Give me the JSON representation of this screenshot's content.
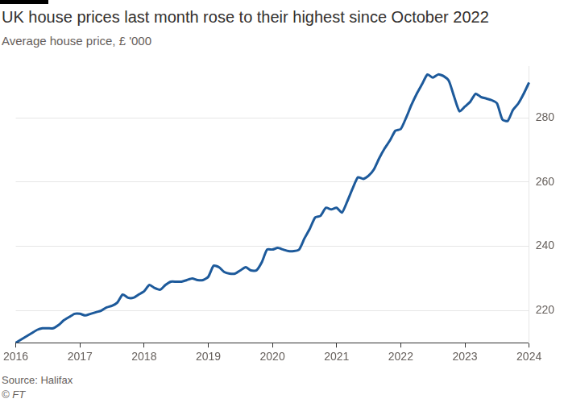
{
  "chart_data": {
    "type": "line",
    "title": "UK house prices last month rose to their highest since October 2022",
    "subtitle": "Average house price, £ '000",
    "source": "Source: Halifax",
    "credit": "© FT",
    "categories": [
      "2016",
      null,
      null,
      null,
      null,
      null,
      null,
      null,
      null,
      null,
      null,
      null,
      "2017",
      null,
      null,
      null,
      null,
      null,
      null,
      null,
      null,
      null,
      null,
      null,
      "2018",
      null,
      null,
      null,
      null,
      null,
      null,
      null,
      null,
      null,
      null,
      null,
      "2019",
      null,
      null,
      null,
      null,
      null,
      null,
      null,
      null,
      null,
      null,
      null,
      "2020",
      null,
      null,
      null,
      null,
      null,
      null,
      null,
      null,
      null,
      null,
      null,
      "2021",
      null,
      null,
      null,
      null,
      null,
      null,
      null,
      null,
      null,
      null,
      null,
      "2022",
      null,
      null,
      null,
      null,
      null,
      null,
      null,
      null,
      null,
      null,
      null,
      "2023",
      null,
      null,
      null,
      null,
      null,
      null,
      null,
      null,
      null,
      null,
      null,
      "2024"
    ],
    "values": [
      210,
      211,
      212,
      213,
      214,
      214.5,
      214.5,
      214.5,
      215.5,
      217,
      218,
      219,
      219,
      218.5,
      219,
      219.5,
      220,
      221,
      221.5,
      222.5,
      225,
      224,
      224,
      225,
      226,
      228,
      227,
      226.5,
      228,
      229,
      229,
      229,
      229.5,
      230,
      229.5,
      229.5,
      230.5,
      234,
      233.5,
      232,
      231.5,
      231.5,
      232.5,
      233.5,
      232.5,
      232.5,
      235,
      239,
      239,
      239.5,
      239,
      238.5,
      238.5,
      239,
      242.5,
      245.5,
      249,
      249.5,
      252,
      251.5,
      252,
      250.5,
      254,
      258,
      261.5,
      261,
      262,
      264,
      267.5,
      270.5,
      273,
      276,
      276.5,
      280,
      284,
      287.5,
      290.5,
      293.5,
      292.5,
      293.5,
      293,
      291.5,
      286.5,
      282,
      283.5,
      285,
      287.5,
      286.5,
      286,
      285.5,
      284.5,
      279.5,
      279,
      282.5,
      284.5,
      287.5,
      291
    ],
    "color": "#1d5a9b",
    "ylim": [
      210,
      296
    ],
    "yticks": [
      220,
      240,
      260,
      280
    ],
    "grid": true
  }
}
